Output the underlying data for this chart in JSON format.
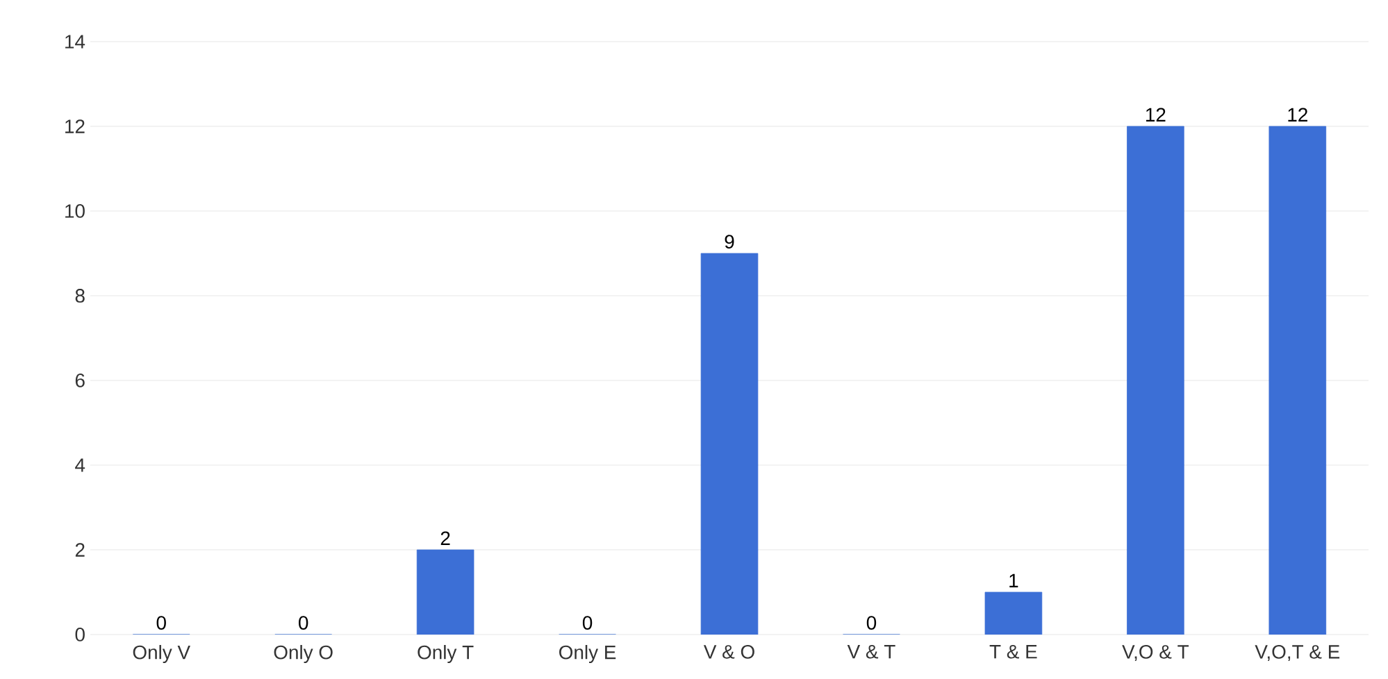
{
  "chart_data": {
    "type": "bar",
    "categories": [
      "Only V",
      "Only O",
      "Only T",
      "Only E",
      "V & O",
      "V & T",
      "T & E",
      "V,O & T",
      "V,O,T & E"
    ],
    "values": [
      0,
      0,
      2,
      0,
      9,
      0,
      1,
      12,
      12
    ],
    "color": "#3c6fd6",
    "ylim": [
      0,
      14
    ],
    "yticks": [
      0,
      2,
      4,
      6,
      8,
      10,
      12,
      14
    ],
    "grid": "y",
    "data_labels": true
  }
}
